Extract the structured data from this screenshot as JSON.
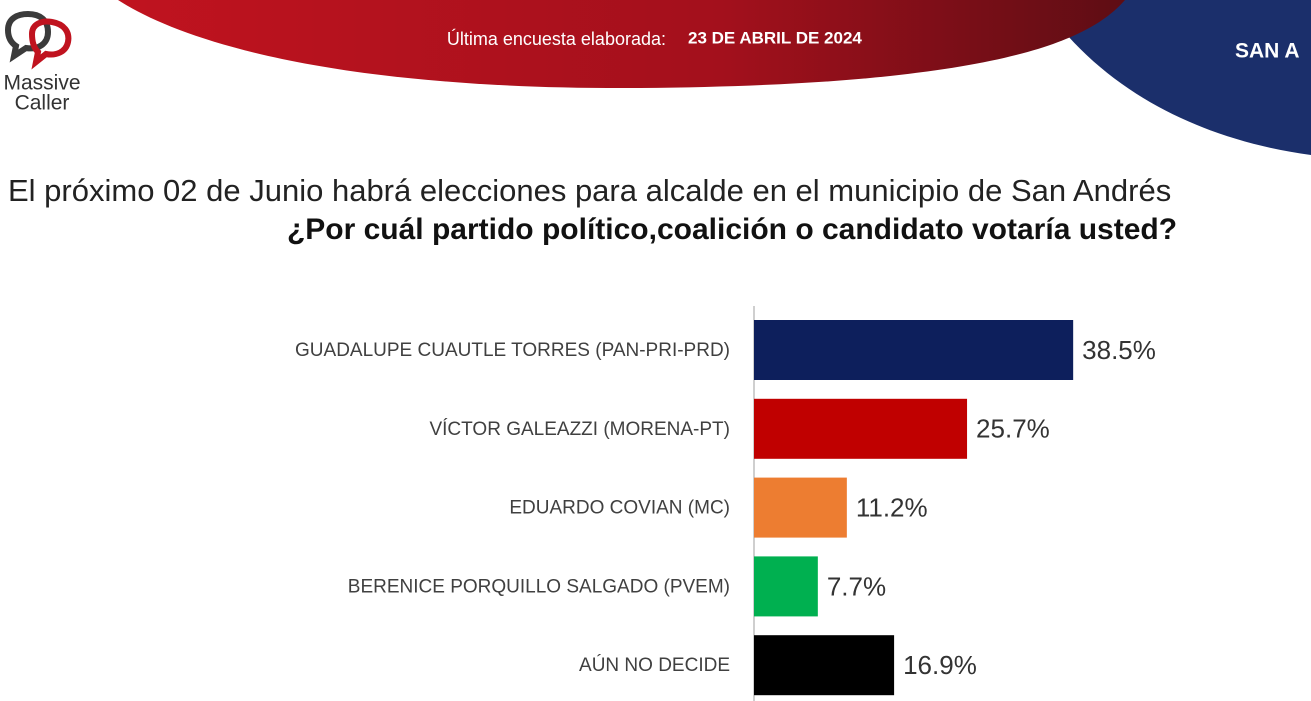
{
  "header": {
    "logo_line1": "Massive",
    "logo_line2": "Caller",
    "survey_label": "Última encuesta elaborada:",
    "survey_date": "23 DE ABRIL DE 2024",
    "place": "SAN A"
  },
  "chart_data": {
    "type": "bar",
    "orientation": "horizontal",
    "title": "El próximo 02 de Junio habrá elecciones para alcalde en el municipio de San Andrés",
    "subtitle": "¿Por cuál partido político,coalición o candidato votaría usted?",
    "categories": [
      "GUADALUPE CUAUTLE TORRES (PAN-PRI-PRD)",
      "VÍCTOR GALEAZZI (MORENA-PT)",
      "EDUARDO COVIAN (MC)",
      "BERENICE PORQUILLO SALGADO (PVEM)",
      "AÚN NO DECIDE"
    ],
    "values": [
      38.5,
      25.7,
      11.2,
      7.7,
      16.9
    ],
    "value_labels": [
      "38.5%",
      "25.7%",
      "11.2%",
      "7.7%",
      "16.9%"
    ],
    "colors": [
      "#0d1f5c",
      "#c00000",
      "#ed7d31",
      "#00b050",
      "#000000"
    ]
  }
}
